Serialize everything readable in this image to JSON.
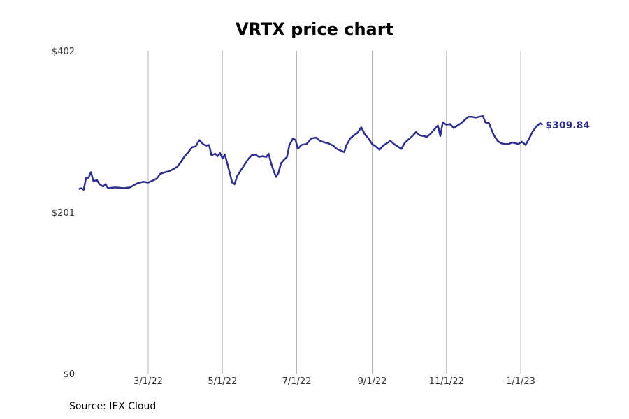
{
  "chart_data": {
    "type": "line",
    "title": "VRTX price chart",
    "source": "Source: IEX Cloud",
    "y_ticks": [
      "$0",
      "$201",
      "$402"
    ],
    "ylim": [
      0,
      402
    ],
    "x_ticks": [
      {
        "label": "3/1/22",
        "date": "2022-03-01"
      },
      {
        "label": "5/1/22",
        "date": "2022-05-01"
      },
      {
        "label": "7/1/22",
        "date": "2022-07-01"
      },
      {
        "label": "9/1/22",
        "date": "2022-09-01"
      },
      {
        "label": "11/1/22",
        "date": "2022-11-01"
      },
      {
        "label": "1/1/23",
        "date": "2023-01-01"
      }
    ],
    "xlim": [
      "2022-01-03",
      "2023-01-22"
    ],
    "grid": "vertical",
    "line_color": "#2e2e8f",
    "last_value_label": "$309.84",
    "series": [
      {
        "points": [
          [
            "2022-01-03",
            230
          ],
          [
            "2022-01-05",
            231
          ],
          [
            "2022-01-07",
            229
          ],
          [
            "2022-01-09",
            244
          ],
          [
            "2022-01-11",
            244
          ],
          [
            "2022-01-13",
            251
          ],
          [
            "2022-01-15",
            240
          ],
          [
            "2022-01-18",
            241
          ],
          [
            "2022-01-20",
            236
          ],
          [
            "2022-01-23",
            233
          ],
          [
            "2022-01-25",
            236
          ],
          [
            "2022-01-27",
            231
          ],
          [
            "2022-02-02",
            232
          ],
          [
            "2022-02-09",
            231
          ],
          [
            "2022-02-14",
            232
          ],
          [
            "2022-02-20",
            237
          ],
          [
            "2022-02-25",
            239
          ],
          [
            "2022-03-01",
            238
          ],
          [
            "2022-03-04",
            240
          ],
          [
            "2022-03-08",
            243
          ],
          [
            "2022-03-11",
            249
          ],
          [
            "2022-03-15",
            251
          ],
          [
            "2022-03-18",
            252
          ],
          [
            "2022-03-22",
            255
          ],
          [
            "2022-03-25",
            258
          ],
          [
            "2022-03-28",
            264
          ],
          [
            "2022-03-31",
            271
          ],
          [
            "2022-04-03",
            276
          ],
          [
            "2022-04-06",
            282
          ],
          [
            "2022-04-09",
            283
          ],
          [
            "2022-04-12",
            291
          ],
          [
            "2022-04-15",
            286
          ],
          [
            "2022-04-18",
            284
          ],
          [
            "2022-04-20",
            285
          ],
          [
            "2022-04-22",
            272
          ],
          [
            "2022-04-25",
            274
          ],
          [
            "2022-04-27",
            271
          ],
          [
            "2022-04-29",
            275
          ],
          [
            "2022-05-01",
            268
          ],
          [
            "2022-05-03",
            273
          ],
          [
            "2022-05-05",
            262
          ],
          [
            "2022-05-07",
            250
          ],
          [
            "2022-05-09",
            238
          ],
          [
            "2022-05-11",
            236
          ],
          [
            "2022-05-13",
            246
          ],
          [
            "2022-05-16",
            253
          ],
          [
            "2022-05-19",
            260
          ],
          [
            "2022-05-22",
            267
          ],
          [
            "2022-05-25",
            272
          ],
          [
            "2022-05-28",
            273
          ],
          [
            "2022-05-31",
            270
          ],
          [
            "2022-06-03",
            271
          ],
          [
            "2022-06-06",
            270
          ],
          [
            "2022-06-08",
            274
          ],
          [
            "2022-06-10",
            262
          ],
          [
            "2022-06-12",
            253
          ],
          [
            "2022-06-14",
            245
          ],
          [
            "2022-06-16",
            250
          ],
          [
            "2022-06-18",
            262
          ],
          [
            "2022-06-21",
            267
          ],
          [
            "2022-06-23",
            270
          ],
          [
            "2022-06-25",
            285
          ],
          [
            "2022-06-28",
            293
          ],
          [
            "2022-06-30",
            291
          ],
          [
            "2022-07-02",
            280
          ],
          [
            "2022-07-05",
            285
          ],
          [
            "2022-07-09",
            286
          ],
          [
            "2022-07-13",
            293
          ],
          [
            "2022-07-17",
            294
          ],
          [
            "2022-07-20",
            290
          ],
          [
            "2022-07-24",
            288
          ],
          [
            "2022-07-27",
            287
          ],
          [
            "2022-07-31",
            284
          ],
          [
            "2022-08-03",
            280
          ],
          [
            "2022-08-06",
            278
          ],
          [
            "2022-08-09",
            276
          ],
          [
            "2022-08-11",
            285
          ],
          [
            "2022-08-14",
            293
          ],
          [
            "2022-08-17",
            297
          ],
          [
            "2022-08-20",
            300
          ],
          [
            "2022-08-23",
            307
          ],
          [
            "2022-08-26",
            298
          ],
          [
            "2022-08-29",
            293
          ],
          [
            "2022-09-01",
            286
          ],
          [
            "2022-09-04",
            283
          ],
          [
            "2022-09-07",
            279
          ],
          [
            "2022-09-10",
            284
          ],
          [
            "2022-09-13",
            287
          ],
          [
            "2022-09-16",
            290
          ],
          [
            "2022-09-19",
            286
          ],
          [
            "2022-09-22",
            283
          ],
          [
            "2022-09-25",
            280
          ],
          [
            "2022-09-28",
            288
          ],
          [
            "2022-10-01",
            292
          ],
          [
            "2022-10-04",
            296
          ],
          [
            "2022-10-07",
            301
          ],
          [
            "2022-10-10",
            297
          ],
          [
            "2022-10-13",
            296
          ],
          [
            "2022-10-16",
            295
          ],
          [
            "2022-10-19",
            299
          ],
          [
            "2022-10-22",
            304
          ],
          [
            "2022-10-25",
            309
          ],
          [
            "2022-10-27",
            296
          ],
          [
            "2022-10-29",
            313
          ],
          [
            "2022-11-01",
            310
          ],
          [
            "2022-11-04",
            311
          ],
          [
            "2022-11-07",
            306
          ],
          [
            "2022-11-10",
            309
          ],
          [
            "2022-11-13",
            312
          ],
          [
            "2022-11-16",
            316
          ],
          [
            "2022-11-19",
            320
          ],
          [
            "2022-11-22",
            320
          ],
          [
            "2022-11-25",
            319
          ],
          [
            "2022-11-28",
            320
          ],
          [
            "2022-12-01",
            321
          ],
          [
            "2022-12-03",
            313
          ],
          [
            "2022-12-06",
            312
          ],
          [
            "2022-12-08",
            304
          ],
          [
            "2022-12-10",
            297
          ],
          [
            "2022-12-13",
            290
          ],
          [
            "2022-12-16",
            287
          ],
          [
            "2022-12-19",
            286
          ],
          [
            "2022-12-22",
            286
          ],
          [
            "2022-12-25",
            288
          ],
          [
            "2022-12-28",
            287
          ],
          [
            "2022-12-30",
            286
          ],
          [
            "2023-01-02",
            289
          ],
          [
            "2023-01-05",
            285
          ],
          [
            "2023-01-08",
            293
          ],
          [
            "2023-01-11",
            302
          ],
          [
            "2023-01-14",
            308
          ],
          [
            "2023-01-17",
            312
          ],
          [
            "2023-01-19",
            309.84
          ]
        ]
      }
    ]
  }
}
